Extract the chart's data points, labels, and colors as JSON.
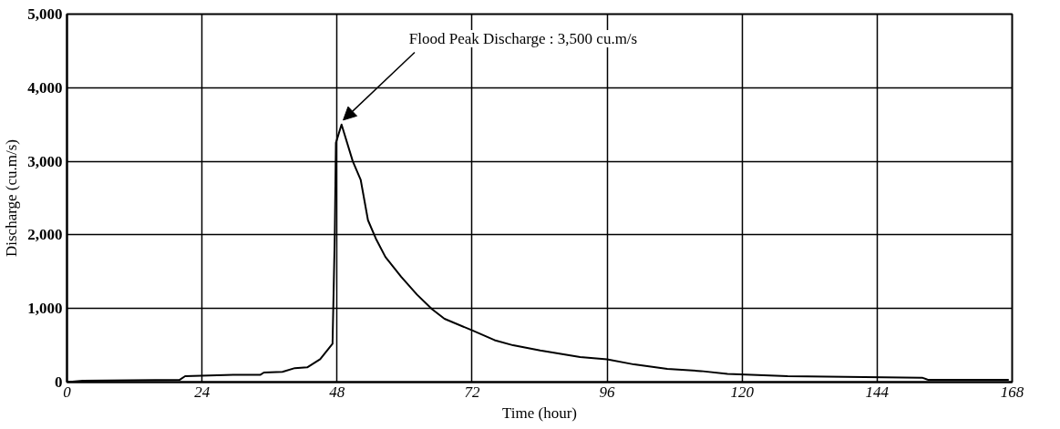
{
  "chart_data": {
    "type": "line",
    "xlabel": "Time (hour)",
    "ylabel": "Discharge (cu.m/s)",
    "x": [
      0,
      2.8,
      20,
      21,
      29.7,
      34.4,
      35,
      38.3,
      40.5,
      42.7,
      45,
      47.2,
      47.6,
      47.8,
      48.8,
      50.8,
      52.2,
      53.5,
      54.9,
      56.6,
      59.4,
      62.2,
      64.9,
      67.1,
      72.1,
      76,
      79.3,
      84.1,
      91.2,
      96,
      100.8,
      106.7,
      112.7,
      117.4,
      128.1,
      152,
      153.1,
      167.4
    ],
    "series": [
      {
        "color": "#000000",
        "values": [
          0,
          20,
          30,
          80,
          100,
          100,
          130,
          140,
          190,
          200,
          310,
          520,
          2000,
          3250,
          3500,
          3000,
          2750,
          2200,
          1950,
          1700,
          1430,
          1190,
          990,
          860,
          700,
          570,
          500,
          430,
          340,
          310,
          240,
          180,
          150,
          110,
          80,
          60,
          30,
          30
        ]
      }
    ],
    "xlim": [
      0,
      168
    ],
    "xticks": [
      0,
      24,
      48,
      72,
      96,
      120,
      144,
      168
    ],
    "ylim": [
      0,
      5000
    ],
    "yticks": [
      {
        "value": 0,
        "label": "0"
      },
      {
        "value": 1000,
        "label": "1,000"
      },
      {
        "value": 2000,
        "label": "2,000"
      },
      {
        "value": 3000,
        "label": "3,000"
      },
      {
        "value": 4000,
        "label": "4,000"
      },
      {
        "value": 5000,
        "label": "5,000"
      }
    ],
    "grid": true,
    "marker": "none",
    "line_style": "solid",
    "annotations": [
      {
        "text": "Flood Peak Discharge : 3,500 cu.m/s",
        "x": 48.8,
        "y": 3500
      }
    ]
  }
}
